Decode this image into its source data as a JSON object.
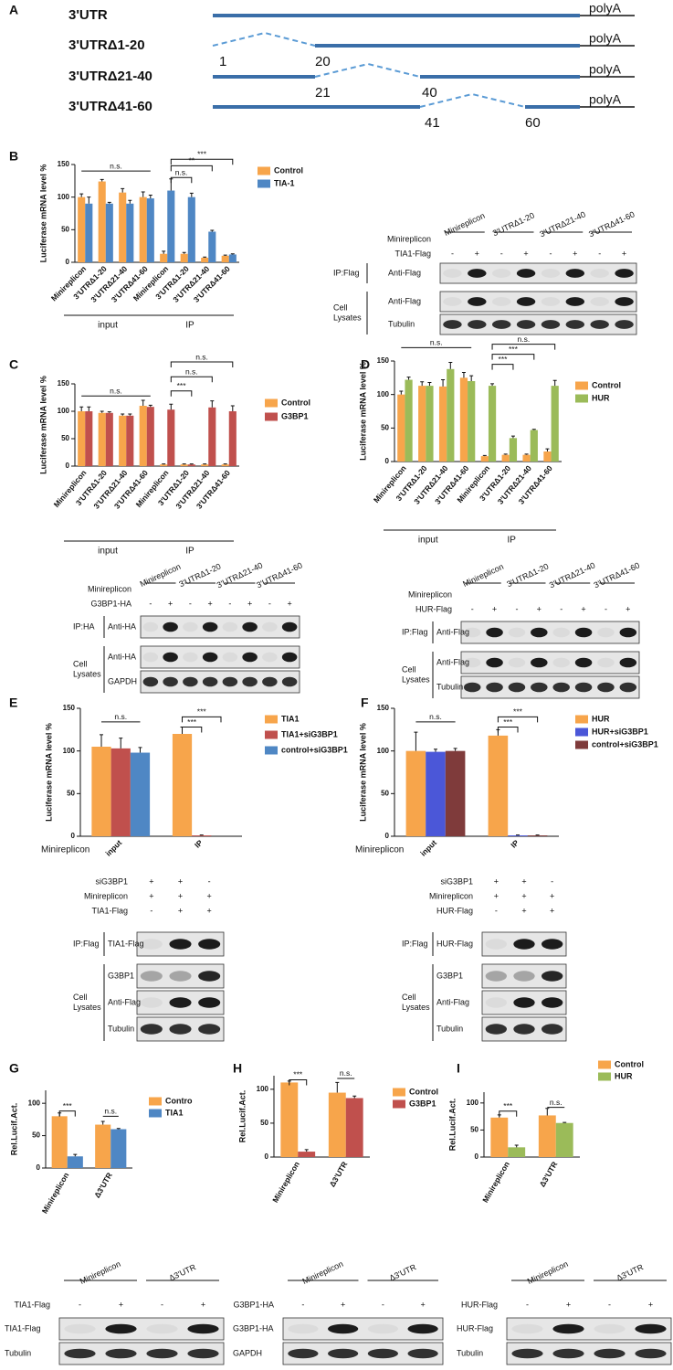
{
  "figure": {
    "panels": [
      "A",
      "B",
      "C",
      "D",
      "E",
      "F",
      "G",
      "H",
      "I"
    ],
    "diagram": {
      "rows": [
        {
          "name": "3'UTR",
          "tail": "polyA",
          "positions": []
        },
        {
          "name": "3'UTRΔ1-20",
          "tail": "polyA",
          "positions": [
            1,
            20
          ]
        },
        {
          "name": "3'UTRΔ21-40",
          "tail": "polyA",
          "positions": [
            21,
            40
          ]
        },
        {
          "name": "3'UTRΔ41-60",
          "tail": "polyA",
          "positions": [
            41,
            60
          ]
        }
      ]
    },
    "blots": [
      {
        "header_label": "Minireplicon",
        "headers": [
          "Minireplicon",
          "3'UTRΔ1-20",
          "3'UTRΔ21-40",
          "3'UTRΔ41-60"
        ],
        "conditions": [
          {
            "label": "TIA1-Flag",
            "marks": [
              "-",
              "+",
              "-",
              "+",
              "-",
              "+",
              "-",
              "+"
            ]
          }
        ],
        "groups": [
          {
            "label": "IP:Flag",
            "rows": [
              "Anti-Flag"
            ]
          },
          {
            "label": "Cell Lysates",
            "rows": [
              "Anti-Flag",
              "Tubulin"
            ]
          }
        ]
      },
      {
        "header_label": "Minireplicon",
        "headers": [
          "Minireplicon",
          "3'UTRΔ1-20",
          "3'UTRΔ21-40",
          "3'UTRΔ41-60"
        ],
        "conditions": [
          {
            "label": "G3BP1-HA",
            "marks": [
              "-",
              "+",
              "-",
              "+",
              "-",
              "+",
              "-",
              "+"
            ]
          }
        ],
        "groups": [
          {
            "label": "IP:HA",
            "rows": [
              "Anti-HA"
            ]
          },
          {
            "label": "Cell Lysates",
            "rows": [
              "Anti-HA",
              "GAPDH"
            ]
          }
        ]
      },
      {
        "header_label": "Minireplicon",
        "headers": [
          "Minireplicon",
          "3'UTRΔ1-20",
          "3'UTRΔ21-40",
          "3'UTRΔ41-60"
        ],
        "conditions": [
          {
            "label": "HUR-Flag",
            "marks": [
              "-",
              "+",
              "-",
              "+",
              "-",
              "+",
              "-",
              "+"
            ]
          }
        ],
        "groups": [
          {
            "label": "IP:Flag",
            "rows": [
              "Anti-Flag"
            ]
          },
          {
            "label": "Cell Lysates",
            "rows": [
              "Anti-Flag",
              "Tubulin"
            ]
          }
        ]
      },
      {
        "conditions": [
          {
            "label": "siG3BP1",
            "marks": [
              "+",
              "+",
              "-"
            ]
          },
          {
            "label": "Minireplicon",
            "marks": [
              "+",
              "+",
              "+"
            ]
          },
          {
            "label": "TIA1-Flag",
            "marks": [
              "-",
              "+",
              "+"
            ]
          }
        ],
        "groups": [
          {
            "label": "IP:Flag",
            "rows": [
              "TIA1-Flag"
            ]
          },
          {
            "label": "Cell Lysates",
            "rows": [
              "G3BP1",
              "Anti-Flag",
              "Tubulin"
            ]
          }
        ]
      },
      {
        "conditions": [
          {
            "label": "siG3BP1",
            "marks": [
              "+",
              "+",
              "-"
            ]
          },
          {
            "label": "Minireplicon",
            "marks": [
              "+",
              "+",
              "+"
            ]
          },
          {
            "label": "HUR-Flag",
            "marks": [
              "-",
              "+",
              "+"
            ]
          }
        ],
        "groups": [
          {
            "label": "IP:Flag",
            "rows": [
              "HUR-Flag"
            ]
          },
          {
            "label": "Cell Lysates",
            "rows": [
              "G3BP1",
              "Anti-Flag",
              "Tubulin"
            ]
          }
        ]
      },
      {
        "headers": [
          "Minireplicon",
          "Δ3'UTR"
        ],
        "conditions": [
          {
            "label": "TIA1-Flag",
            "marks": [
              "-",
              "+",
              "-",
              "+"
            ]
          }
        ],
        "groups": [
          {
            "rows": [
              "TIA1-Flag",
              "Tubulin"
            ]
          }
        ]
      },
      {
        "headers": [
          "Minireplicon",
          "Δ3'UTR"
        ],
        "conditions": [
          {
            "label": "G3BP1-HA",
            "marks": [
              "-",
              "+",
              "-",
              "+"
            ]
          }
        ],
        "groups": [
          {
            "rows": [
              "G3BP1-HA",
              "GAPDH"
            ]
          }
        ]
      },
      {
        "headers": [
          "Minireplicon",
          "Δ3'UTR"
        ],
        "conditions": [
          {
            "label": "HUR-Flag",
            "marks": [
              "-",
              "+",
              "-",
              "+"
            ]
          }
        ],
        "groups": [
          {
            "rows": [
              "HUR-Flag",
              "Tubulin"
            ]
          }
        ]
      }
    ]
  },
  "chart_data": [
    {
      "type": "bar",
      "y_label": "Luciferase mRNA level %",
      "categories": [
        "Minireplicon",
        "3'UTRΔ1-20",
        "3'UTRΔ21-40",
        "3'UTRΔ41-60",
        "Minireplicon",
        "3'UTRΔ1-20",
        "3'UTRΔ21-40",
        "3'UTRΔ41-60"
      ],
      "groups": [
        "input",
        "IP"
      ],
      "series": [
        {
          "name": "Control",
          "color": "#f7a54b",
          "values": [
            100,
            124,
            107,
            100,
            13,
            13,
            7,
            10
          ],
          "errors": [
            5,
            3,
            6,
            8,
            4,
            2,
            1,
            1
          ]
        },
        {
          "name": "TIA-1",
          "color": "#4f87c4",
          "values": [
            90,
            90,
            90,
            98,
            110,
            100,
            47,
            12
          ],
          "errors": [
            10,
            2,
            5,
            5,
            18,
            6,
            2,
            1
          ]
        }
      ],
      "ylim": [
        0,
        150
      ],
      "yticks": [
        0,
        50,
        100,
        150
      ],
      "annotations": [
        "n.s.",
        "***",
        "**",
        "n.s."
      ]
    },
    {
      "type": "bar",
      "y_label": "Luciferase mRNA level %",
      "categories": [
        "Minireplicon",
        "3'UTRΔ1-20",
        "3'UTRΔ21-40",
        "3'UTRΔ41-60",
        "Minireplicon",
        "3'UTRΔ1-20",
        "3'UTRΔ21-40",
        "3'UTRΔ41-60"
      ],
      "groups": [
        "input",
        "IP"
      ],
      "series": [
        {
          "name": "Control",
          "color": "#f7a54b",
          "values": [
            100,
            97,
            92,
            110,
            3,
            3,
            3,
            3
          ],
          "errors": [
            8,
            3,
            3,
            10,
            1,
            1,
            1,
            1
          ]
        },
        {
          "name": "G3BP1",
          "color": "#c0504d",
          "values": [
            100,
            97,
            92,
            108,
            103,
            3,
            107,
            100
          ],
          "errors": [
            8,
            2,
            3,
            3,
            10,
            1,
            12,
            10
          ]
        }
      ],
      "ylim": [
        0,
        150
      ],
      "yticks": [
        0,
        50,
        100,
        150
      ],
      "annotations": [
        "n.s.",
        "n.s.",
        "n.s.",
        "***"
      ]
    },
    {
      "type": "bar",
      "y_label": "Luciferase mRNA level %",
      "categories": [
        "Minireplicon",
        "3'UTRΔ1-20",
        "3'UTRΔ21-40",
        "3'UTRΔ41-60",
        "Minireplicon",
        "3'UTRΔ1-20",
        "3'UTRΔ21-40",
        "3'UTRΔ41-60"
      ],
      "groups": [
        "input",
        "IP"
      ],
      "series": [
        {
          "name": "Control",
          "color": "#f7a54b",
          "values": [
            100,
            113,
            112,
            125,
            8,
            10,
            10,
            15
          ],
          "errors": [
            5,
            6,
            10,
            8,
            1,
            1,
            1,
            4
          ]
        },
        {
          "name": "HUR",
          "color": "#9bbb59",
          "values": [
            122,
            113,
            138,
            120,
            113,
            35,
            47,
            113
          ],
          "errors": [
            4,
            5,
            10,
            8,
            3,
            3,
            1,
            8
          ]
        }
      ],
      "ylim": [
        0,
        150
      ],
      "yticks": [
        0,
        50,
        100,
        150
      ],
      "annotations": [
        "n.s.",
        "n.s.",
        "***",
        "***"
      ]
    },
    {
      "type": "bar",
      "y_label": "Luciferase mRNA level %",
      "x_label": "Minireplicon",
      "categories": [
        "input",
        "IP"
      ],
      "series": [
        {
          "name": "TIA1",
          "color": "#f7a54b",
          "values": [
            105,
            120
          ],
          "errors": [
            14,
            8
          ]
        },
        {
          "name": "TIA1+siG3BP1",
          "color": "#c0504d",
          "values": [
            103,
            1
          ],
          "errors": [
            12,
            0.5
          ]
        },
        {
          "name": "control+siG3BP1",
          "color": "#4f87c4",
          "values": [
            98,
            0
          ],
          "errors": [
            6,
            0
          ]
        }
      ],
      "ylim": [
        0,
        150
      ],
      "yticks": [
        0,
        50,
        100,
        150
      ],
      "annotations": [
        "n.s.",
        "***",
        "***"
      ]
    },
    {
      "type": "bar",
      "y_label": "Luciferase mRNA level %",
      "x_label": "Minireplicon",
      "categories": [
        "input",
        "IP"
      ],
      "series": [
        {
          "name": "HUR",
          "color": "#f7a54b",
          "values": [
            100,
            118
          ],
          "errors": [
            22,
            7
          ]
        },
        {
          "name": "HUR+siG3BP1",
          "color": "#4b57d8",
          "values": [
            99,
            1
          ],
          "errors": [
            3,
            0.5
          ]
        },
        {
          "name": "control+siG3BP1",
          "color": "#7f3b3b",
          "values": [
            100,
            1
          ],
          "errors": [
            3,
            0.5
          ]
        }
      ],
      "ylim": [
        0,
        150
      ],
      "yticks": [
        0,
        50,
        100,
        150
      ],
      "annotations": [
        "n.s.",
        "***",
        "***"
      ]
    },
    {
      "type": "bar",
      "y_label": "Rel.Lucif.Act.",
      "categories": [
        "Minireplicon",
        "Δ3'UTR"
      ],
      "series": [
        {
          "name": "Contro",
          "color": "#f7a54b",
          "values": [
            80,
            67
          ],
          "errors": [
            5,
            5
          ]
        },
        {
          "name": "TIA1",
          "color": "#4f87c4",
          "values": [
            18,
            60
          ],
          "errors": [
            3,
            1
          ]
        }
      ],
      "ylim": [
        0,
        120
      ],
      "yticks": [
        0,
        50,
        100
      ],
      "annotations": [
        "***",
        "n.s."
      ]
    },
    {
      "type": "bar",
      "y_label": "Rel.Lucif.Act.",
      "categories": [
        "Minireplicon",
        "Δ3'UTR"
      ],
      "series": [
        {
          "name": "Control",
          "color": "#f7a54b",
          "values": [
            110,
            95
          ],
          "errors": [
            2,
            15
          ]
        },
        {
          "name": "G3BP1",
          "color": "#c0504d",
          "values": [
            8,
            87
          ],
          "errors": [
            3,
            3
          ]
        }
      ],
      "ylim": [
        0,
        120
      ],
      "yticks": [
        0,
        50,
        100
      ],
      "annotations": [
        "***",
        "n.s."
      ]
    },
    {
      "type": "bar",
      "y_label": "Rel.Lucif.Act.",
      "categories": [
        "Minireplicon",
        "Δ3'UTR"
      ],
      "series": [
        {
          "name": "Control",
          "color": "#f7a54b",
          "values": [
            73,
            77
          ],
          "errors": [
            5,
            13
          ]
        },
        {
          "name": "HUR",
          "color": "#9bbb59",
          "values": [
            18,
            63
          ],
          "errors": [
            4,
            1
          ]
        }
      ],
      "ylim": [
        0,
        120
      ],
      "yticks": [
        0,
        50,
        100
      ],
      "annotations": [
        "***",
        "n.s."
      ]
    }
  ]
}
